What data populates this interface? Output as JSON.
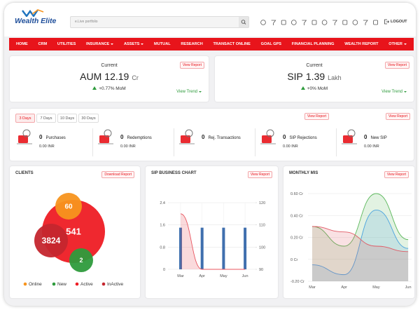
{
  "header": {
    "logo": "Wealth Elite",
    "search_placeholder": "e.Live portfolio",
    "logout": "LOGOUT"
  },
  "nav": [
    {
      "label": "HOME",
      "dropdown": false
    },
    {
      "label": "CRM",
      "dropdown": false
    },
    {
      "label": "UTILITIES",
      "dropdown": false
    },
    {
      "label": "INSURANCE",
      "dropdown": true
    },
    {
      "label": "ASSETS",
      "dropdown": true
    },
    {
      "label": "MUTUAL",
      "dropdown": false
    },
    {
      "label": "RESEARCH",
      "dropdown": false
    },
    {
      "label": "TRANSACT ONLINE",
      "dropdown": false
    },
    {
      "label": "GOAL GPS",
      "dropdown": false
    },
    {
      "label": "FINANCIAL PLANNING",
      "dropdown": false
    },
    {
      "label": "WEALTH REPORT",
      "dropdown": false
    },
    {
      "label": "OTHER",
      "dropdown": true
    }
  ],
  "summary": [
    {
      "caption": "Current",
      "label": "AUM",
      "value": "12.19",
      "unit": "Cr",
      "change": "+0.77% MoM",
      "trend": "View Trend",
      "report": "View Report"
    },
    {
      "caption": "Current",
      "label": "SIP",
      "value": "1.39",
      "unit": "Lakh",
      "change": "+0% MoM",
      "trend": "View Trend",
      "report": "View Report"
    }
  ],
  "activity": {
    "tabs": [
      "3 Days",
      "7 Days",
      "10 Days",
      "30 Days"
    ],
    "active_tab": 0,
    "reports": [
      "View Report",
      "View Report"
    ],
    "items": [
      {
        "count": 0,
        "label": "Purchases",
        "amount": "0.00 INR"
      },
      {
        "count": 0,
        "label": "Redemptions",
        "amount": "0.00 INR"
      },
      {
        "count": 0,
        "label": "Rej. Transactions"
      },
      {
        "count": 0,
        "label": "SIP Rejections",
        "amount": "0.00 INR"
      },
      {
        "count": 0,
        "label": "New SIP",
        "amount": "0.00 INR"
      }
    ]
  },
  "clients": {
    "title": "CLIENTS",
    "download": "Download Report",
    "bubbles": [
      {
        "name": "Online",
        "value": 60,
        "color": "#f7941d"
      },
      {
        "name": "New",
        "value": 2,
        "color": "#2e9b3c"
      },
      {
        "name": "Active",
        "value": 541,
        "color": "#ee1c24"
      },
      {
        "name": "InActive",
        "value": 3824,
        "color": "#c4262e"
      }
    ]
  },
  "sip_chart": {
    "type": "bar",
    "title": "SIP BUSINESS CHART",
    "report": "View Report",
    "categories": [
      "Mar",
      "Apr",
      "May",
      "Jun"
    ],
    "series": [
      {
        "type": "bar",
        "color": "#3f6fae",
        "values": [
          1.5,
          1.5,
          1.5,
          1.5
        ]
      },
      {
        "type": "area",
        "color": "#e8555f",
        "axis": "y2",
        "values": [
          115,
          90,
          90,
          90
        ]
      }
    ],
    "ylim": [
      0,
      2.4
    ],
    "yticks": [
      0,
      0.8,
      1.6,
      2.4
    ],
    "y2lim": [
      90,
      120
    ],
    "y2ticks": [
      90,
      100,
      110,
      120
    ],
    "grid": true
  },
  "mis_chart": {
    "type": "area",
    "title": "MONTHLY MIS",
    "report": "View Report",
    "categories": [
      "Mar",
      "Apr",
      "May",
      "Jun"
    ],
    "series": [
      {
        "color": "#5cb85c",
        "values": [
          0.3,
          0.12,
          0.6,
          0.18
        ]
      },
      {
        "color": "#4aa3df",
        "values": [
          -0.05,
          -0.14,
          0.45,
          0.1
        ]
      },
      {
        "color": "#e05a65",
        "values": [
          0.3,
          0.25,
          0.12,
          0.07
        ]
      }
    ],
    "ylim": [
      -0.2,
      0.6
    ],
    "yticks": [
      {
        "value": -0.2,
        "label": "-0.20 Cr"
      },
      {
        "value": 0,
        "label": "0 Cr"
      },
      {
        "value": 0.2,
        "label": "0.20 Cr"
      },
      {
        "value": 0.4,
        "label": "0.40 Cr"
      },
      {
        "value": 0.6,
        "label": "0.60 Cr"
      }
    ],
    "grid": true
  }
}
